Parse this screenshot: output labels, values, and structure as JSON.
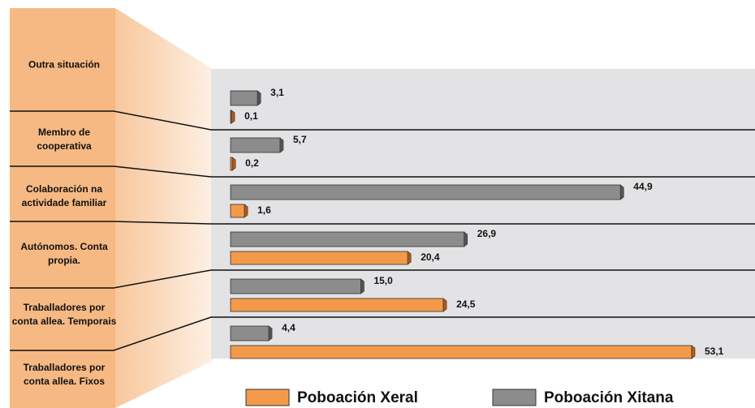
{
  "chart_data": {
    "type": "bar",
    "categories": [
      "Outra situación",
      "Membro de cooperativa",
      "Colaboración na actividade familiar",
      "Autónomos. Conta propia.",
      "Traballadores por conta allea. Temporais",
      "Traballadores por conta allea. Fixos"
    ],
    "series": [
      {
        "name": "Poboación Xitana",
        "color": "#8c8c8c",
        "values": [
          3.1,
          5.7,
          44.9,
          26.9,
          15.0,
          4.4
        ],
        "value_labels": [
          "3,1",
          "5,7",
          "44,9",
          "26,9",
          "15,0",
          "4,4"
        ]
      },
      {
        "name": "Poboación Xeral",
        "color": "#f39a4a",
        "values": [
          0.1,
          0.2,
          1.6,
          20.4,
          24.5,
          53.1
        ],
        "value_labels": [
          "0,1",
          "0,2",
          "1,6",
          "20,4",
          "24,5",
          "53,1"
        ]
      }
    ]
  }
}
